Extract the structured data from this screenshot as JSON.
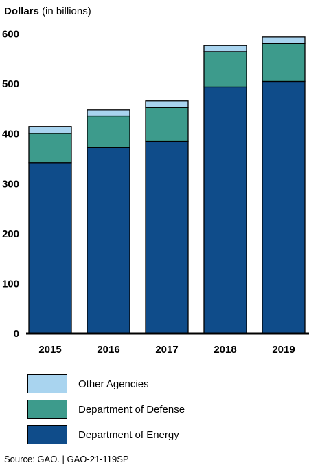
{
  "chart_data": {
    "type": "bar",
    "stacked": true,
    "ylabel_bold": "Dollars",
    "ylabel_rest": "(in billions)",
    "categories": [
      "2015",
      "2016",
      "2017",
      "2018",
      "2019"
    ],
    "yticks": [
      "0",
      "100",
      "200",
      "300",
      "400",
      "500",
      "600"
    ],
    "ylim": [
      0,
      600
    ],
    "grid": false,
    "legend_position": "bottom",
    "series": [
      {
        "name": "Department of Energy",
        "color": "#0f4c8a",
        "values": [
          342,
          373,
          385,
          494,
          505
        ]
      },
      {
        "name": "Department of Defense",
        "color": "#3d9b8c",
        "values": [
          59,
          63,
          68,
          71,
          76
        ]
      },
      {
        "name": "Other Agencies",
        "color": "#a9d4ef",
        "values": [
          14,
          12,
          13,
          12,
          13
        ]
      }
    ]
  },
  "legend": [
    {
      "label": "Other Agencies",
      "color": "#a9d4ef"
    },
    {
      "label": "Department of Defense",
      "color": "#3d9b8c"
    },
    {
      "label": "Department of Energy",
      "color": "#0f4c8a"
    }
  ],
  "source": "Source: GAO.  |  GAO-21-119SP"
}
